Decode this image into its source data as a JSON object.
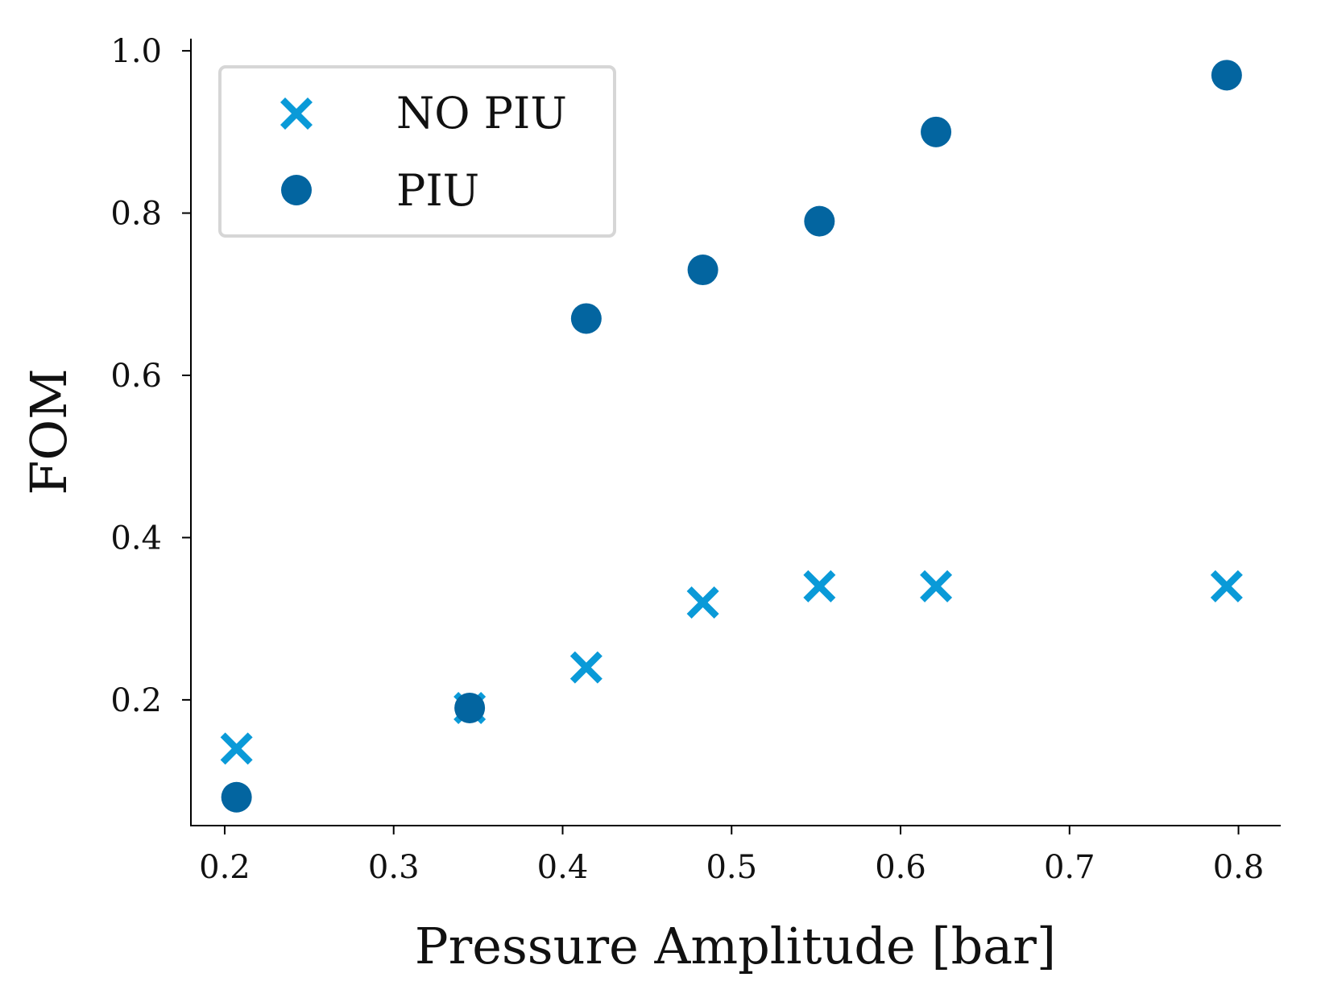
{
  "chart_data": {
    "type": "scatter",
    "title": "",
    "xlabel": "Pressure Amplitude [bar]",
    "ylabel": "FOM",
    "xlim": [
      0.18,
      0.825
    ],
    "ylim": [
      0.045,
      1.015
    ],
    "xticks": [
      0.2,
      0.3,
      0.4,
      0.5,
      0.6,
      0.7,
      0.8
    ],
    "xtick_labels": [
      "0.2",
      "0.3",
      "0.4",
      "0.5",
      "0.6",
      "0.7",
      "0.8"
    ],
    "yticks": [
      0.2,
      0.4,
      0.6,
      0.8,
      1.0
    ],
    "ytick_labels": [
      "0.2",
      "0.4",
      "0.6",
      "0.8",
      "1.0"
    ],
    "grid": false,
    "legend_position": "top-left",
    "series": [
      {
        "name": "NO PIU",
        "marker": "x",
        "color": "#0a9ad8",
        "x": [
          0.207,
          0.345,
          0.414,
          0.483,
          0.552,
          0.621,
          0.793
        ],
        "y": [
          0.14,
          0.19,
          0.24,
          0.32,
          0.34,
          0.34,
          0.34
        ]
      },
      {
        "name": "PIU",
        "marker": "circle",
        "color": "#0365a0",
        "x": [
          0.207,
          0.345,
          0.414,
          0.483,
          0.552,
          0.621,
          0.793
        ],
        "y": [
          0.08,
          0.19,
          0.67,
          0.73,
          0.79,
          0.9,
          0.97
        ]
      }
    ]
  }
}
